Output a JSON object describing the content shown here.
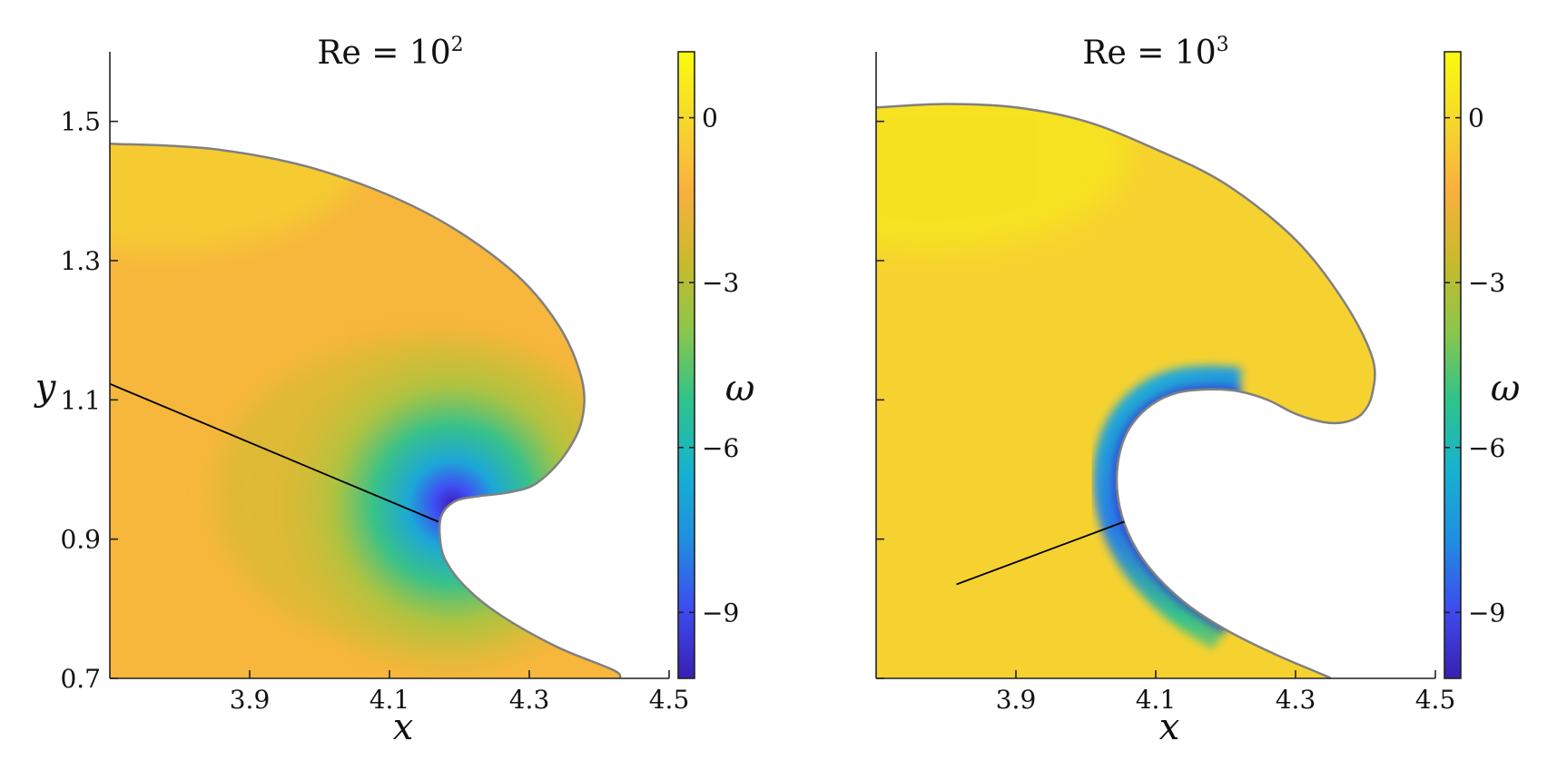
{
  "colors": {
    "colormap": [
      "#3a1fb0",
      "#3d4cf0",
      "#1f8fe0",
      "#17b2cf",
      "#2fc38a",
      "#8cc64a",
      "#c9ba2c",
      "#f9b03f",
      "#f6d82c",
      "#f9fb0e"
    ],
    "outline": "#808080",
    "profile_line": "#000000"
  },
  "chart_data": [
    {
      "type": "heatmap",
      "title": "Re = 10",
      "title_exponent": "2",
      "xlabel": "x",
      "ylabel": "y",
      "xlim": [
        3.7,
        4.5
      ],
      "ylim": [
        0.7,
        1.6
      ],
      "xticks": [
        3.9,
        4.1,
        4.3,
        4.5
      ],
      "yticks": [
        0.7,
        0.9,
        1.1,
        1.3,
        1.5
      ],
      "colorbar": {
        "label": "ω",
        "range": [
          -10.2,
          1.2
        ],
        "ticks": [
          0,
          -3,
          -6,
          -9
        ],
        "tick_labels": [
          "0",
          "−3",
          "−6",
          "−9"
        ]
      },
      "min_vorticity": -10,
      "vortex_center": [
        4.19,
        0.95
      ],
      "profile_line": [
        [
          3.7,
          1.123
        ],
        [
          4.17,
          0.925
        ]
      ],
      "surface": [
        [
          3.7,
          1.468
        ],
        [
          3.85,
          1.46
        ],
        [
          4.0,
          1.43
        ],
        [
          4.15,
          1.37
        ],
        [
          4.27,
          1.29
        ],
        [
          4.34,
          1.21
        ],
        [
          4.375,
          1.13
        ],
        [
          4.375,
          1.07
        ],
        [
          4.35,
          1.02
        ],
        [
          4.31,
          0.98
        ],
        [
          4.27,
          0.967
        ],
        [
          4.23,
          0.962
        ],
        [
          4.195,
          0.955
        ],
        [
          4.175,
          0.935
        ],
        [
          4.172,
          0.905
        ],
        [
          4.18,
          0.87
        ],
        [
          4.21,
          0.83
        ],
        [
          4.26,
          0.79
        ],
        [
          4.34,
          0.745
        ],
        [
          4.42,
          0.712
        ],
        [
          4.43,
          0.7
        ]
      ]
    },
    {
      "type": "heatmap",
      "title": "Re = 10",
      "title_exponent": "3",
      "xlabel": "x",
      "ylabel": "",
      "xlim": [
        3.7,
        4.5
      ],
      "ylim": [
        0.7,
        1.6
      ],
      "xticks": [
        3.9,
        4.1,
        4.3,
        4.5
      ],
      "yticks": [
        0.7,
        0.9,
        1.1,
        1.3,
        1.5
      ],
      "colorbar": {
        "label": "ω",
        "range": [
          -10.2,
          1.2
        ],
        "ticks": [
          0,
          -3,
          -6,
          -9
        ],
        "tick_labels": [
          "0",
          "−3",
          "−6",
          "−9"
        ]
      },
      "min_vorticity": -10,
      "profile_line": [
        [
          3.815,
          0.835
        ],
        [
          4.055,
          0.925
        ]
      ],
      "surface": [
        [
          3.7,
          1.52
        ],
        [
          3.8,
          1.525
        ],
        [
          3.9,
          1.52
        ],
        [
          4.0,
          1.5
        ],
        [
          4.1,
          1.46
        ],
        [
          4.2,
          1.41
        ],
        [
          4.3,
          1.33
        ],
        [
          4.37,
          1.24
        ],
        [
          4.41,
          1.16
        ],
        [
          4.41,
          1.11
        ],
        [
          4.395,
          1.08
        ],
        [
          4.37,
          1.068
        ],
        [
          4.34,
          1.068
        ],
        [
          4.3,
          1.08
        ],
        [
          4.26,
          1.1
        ],
        [
          4.22,
          1.112
        ],
        [
          4.18,
          1.115
        ],
        [
          4.13,
          1.11
        ],
        [
          4.09,
          1.09
        ],
        [
          4.06,
          1.055
        ],
        [
          4.046,
          1.01
        ],
        [
          4.046,
          0.96
        ],
        [
          4.06,
          0.91
        ],
        [
          4.09,
          0.86
        ],
        [
          4.14,
          0.81
        ],
        [
          4.2,
          0.77
        ],
        [
          4.27,
          0.735
        ],
        [
          4.34,
          0.705
        ],
        [
          4.35,
          0.7
        ]
      ]
    }
  ]
}
